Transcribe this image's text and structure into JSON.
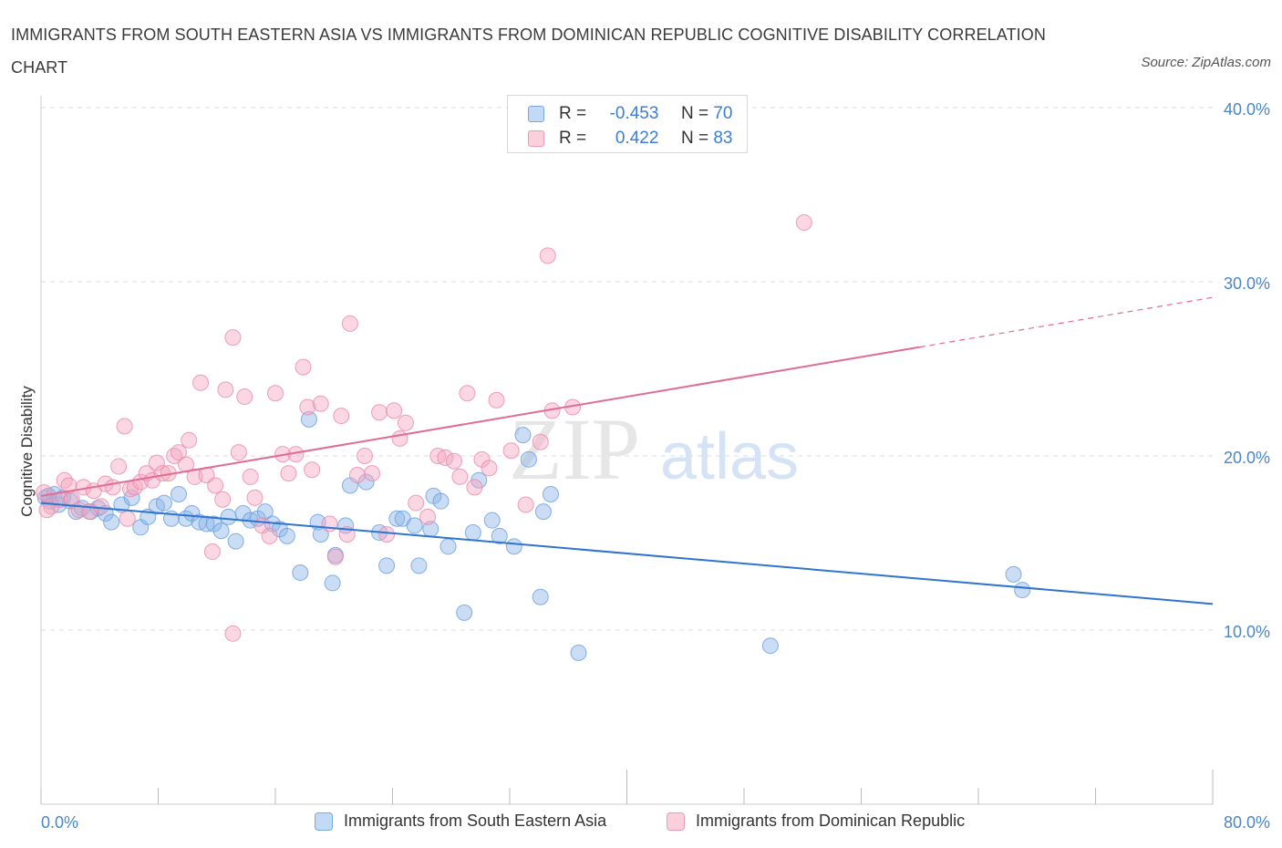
{
  "title": "IMMIGRANTS FROM SOUTH EASTERN ASIA VS IMMIGRANTS FROM DOMINICAN REPUBLIC COGNITIVE DISABILITY CORRELATION CHART",
  "source": "Source: ZipAtlas.com",
  "watermark": {
    "zip": "ZIP",
    "atlas": "atlas"
  },
  "legend_top": {
    "r_label": "R =",
    "n_label": "N =",
    "rows": [
      {
        "r": "-0.453",
        "n": "70"
      },
      {
        "r": "0.422",
        "n": "83"
      }
    ]
  },
  "chart_data": {
    "type": "scatter",
    "title": "IMMIGRANTS FROM SOUTH EASTERN ASIA VS IMMIGRANTS FROM DOMINICAN REPUBLIC COGNITIVE DISABILITY CORRELATION CHART",
    "xlabel": "",
    "ylabel": "Cognitive Disability",
    "xlim": [
      0,
      80
    ],
    "ylim": [
      0,
      40
    ],
    "x_tick_labels": [
      "0.0%",
      "80.0%"
    ],
    "y_ticks": [
      10,
      20,
      30,
      40
    ],
    "y_tick_labels": [
      "10.0%",
      "20.0%",
      "30.0%",
      "40.0%"
    ],
    "grid": true,
    "series": [
      {
        "name": "Immigrants from South Eastern Asia",
        "color": "#8ab4e8",
        "line_color": "#2f74d0",
        "r": -0.453,
        "n": 70,
        "trend": {
          "x": [
            0,
            80
          ],
          "y": [
            17.3,
            11.5
          ],
          "dashed_from": null
        },
        "points": [
          [
            0.3,
            17.6
          ],
          [
            0.6,
            17.4
          ],
          [
            0.9,
            17.8
          ],
          [
            1.2,
            17.2
          ],
          [
            1.5,
            17.6
          ],
          [
            2,
            17.4
          ],
          [
            2.4,
            16.8
          ],
          [
            2.8,
            17.0
          ],
          [
            3.4,
            16.8
          ],
          [
            3.9,
            17.0
          ],
          [
            4.4,
            16.7
          ],
          [
            4.8,
            16.2
          ],
          [
            5.5,
            17.2
          ],
          [
            6.2,
            17.6
          ],
          [
            6.8,
            15.9
          ],
          [
            7.3,
            16.5
          ],
          [
            7.9,
            17.1
          ],
          [
            8.4,
            17.3
          ],
          [
            8.9,
            16.4
          ],
          [
            9.4,
            17.8
          ],
          [
            9.9,
            16.4
          ],
          [
            10.3,
            16.7
          ],
          [
            10.8,
            16.2
          ],
          [
            11.3,
            16.1
          ],
          [
            11.8,
            16.1
          ],
          [
            12.3,
            15.7
          ],
          [
            12.8,
            16.5
          ],
          [
            13.3,
            15.1
          ],
          [
            13.8,
            16.7
          ],
          [
            14.3,
            16.3
          ],
          [
            14.8,
            16.4
          ],
          [
            15.3,
            16.8
          ],
          [
            15.8,
            16.1
          ],
          [
            16.3,
            15.8
          ],
          [
            16.8,
            15.4
          ],
          [
            17.7,
            13.3
          ],
          [
            18.3,
            22.1
          ],
          [
            18.9,
            16.2
          ],
          [
            19.1,
            15.5
          ],
          [
            19.9,
            12.7
          ],
          [
            20.1,
            14.3
          ],
          [
            20.8,
            16.0
          ],
          [
            21.1,
            18.3
          ],
          [
            22.2,
            18.5
          ],
          [
            23.1,
            15.6
          ],
          [
            23.6,
            13.7
          ],
          [
            24.3,
            16.4
          ],
          [
            24.7,
            16.4
          ],
          [
            25.5,
            16.0
          ],
          [
            25.8,
            13.7
          ],
          [
            26.6,
            15.8
          ],
          [
            26.8,
            17.7
          ],
          [
            27.3,
            17.4
          ],
          [
            27.8,
            14.8
          ],
          [
            28.9,
            11.0
          ],
          [
            29.5,
            15.6
          ],
          [
            29.9,
            18.6
          ],
          [
            30.8,
            16.3
          ],
          [
            31.3,
            15.4
          ],
          [
            32.3,
            14.8
          ],
          [
            32.9,
            21.2
          ],
          [
            33.3,
            19.8
          ],
          [
            34.1,
            11.9
          ],
          [
            34.3,
            16.8
          ],
          [
            34.8,
            17.8
          ],
          [
            36.7,
            8.7
          ],
          [
            49.8,
            9.1
          ],
          [
            66.4,
            13.2
          ],
          [
            67,
            12.3
          ],
          [
            0.5,
            17.7
          ]
        ]
      },
      {
        "name": "Immigrants from Dominican Republic",
        "color": "#f4a6be",
        "line_color": "#e06c92",
        "r": 0.422,
        "n": 83,
        "trend": {
          "x": [
            0,
            80
          ],
          "y": [
            17.7,
            29.1
          ],
          "dashed_from": 60
        },
        "points": [
          [
            0.2,
            17.9
          ],
          [
            0.7,
            17.1
          ],
          [
            1.3,
            17.5
          ],
          [
            1.6,
            18.6
          ],
          [
            2.1,
            17.5
          ],
          [
            2.6,
            16.9
          ],
          [
            2.9,
            18.2
          ],
          [
            3.3,
            16.8
          ],
          [
            3.6,
            18.0
          ],
          [
            4.1,
            17.1
          ],
          [
            4.4,
            18.4
          ],
          [
            4.9,
            18.2
          ],
          [
            5.3,
            19.4
          ],
          [
            5.7,
            21.7
          ],
          [
            6.1,
            18.1
          ],
          [
            6.4,
            18.2
          ],
          [
            6.8,
            18.5
          ],
          [
            7.2,
            19.0
          ],
          [
            7.6,
            18.6
          ],
          [
            7.9,
            19.6
          ],
          [
            8.3,
            19.0
          ],
          [
            8.7,
            19.0
          ],
          [
            9.1,
            20.0
          ],
          [
            9.4,
            20.2
          ],
          [
            9.9,
            19.5
          ],
          [
            10.1,
            20.9
          ],
          [
            10.5,
            18.8
          ],
          [
            10.9,
            24.2
          ],
          [
            11.3,
            18.9
          ],
          [
            11.7,
            14.5
          ],
          [
            11.9,
            18.3
          ],
          [
            12.4,
            17.5
          ],
          [
            12.6,
            23.8
          ],
          [
            13.1,
            26.8
          ],
          [
            13.5,
            20.2
          ],
          [
            13.9,
            23.4
          ],
          [
            14.3,
            18.8
          ],
          [
            14.6,
            17.6
          ],
          [
            15.1,
            16.0
          ],
          [
            15.6,
            15.4
          ],
          [
            16,
            23.6
          ],
          [
            16.5,
            20.1
          ],
          [
            16.9,
            19.0
          ],
          [
            17.4,
            20.1
          ],
          [
            17.9,
            25.1
          ],
          [
            18.2,
            22.8
          ],
          [
            18.5,
            19.2
          ],
          [
            19.1,
            23.0
          ],
          [
            19.7,
            16.1
          ],
          [
            20.1,
            14.2
          ],
          [
            20.5,
            22.3
          ],
          [
            20.9,
            15.5
          ],
          [
            21.1,
            27.6
          ],
          [
            21.6,
            18.9
          ],
          [
            22.1,
            20.0
          ],
          [
            22.6,
            19.0
          ],
          [
            23.1,
            22.5
          ],
          [
            23.6,
            15.5
          ],
          [
            24.1,
            22.6
          ],
          [
            24.5,
            21.0
          ],
          [
            24.9,
            21.9
          ],
          [
            25.6,
            17.3
          ],
          [
            26.4,
            16.5
          ],
          [
            27.1,
            20.0
          ],
          [
            27.6,
            19.9
          ],
          [
            28.2,
            19.7
          ],
          [
            28.6,
            18.8
          ],
          [
            29.1,
            23.6
          ],
          [
            29.6,
            18.2
          ],
          [
            30.1,
            19.8
          ],
          [
            30.6,
            19.3
          ],
          [
            31.1,
            23.2
          ],
          [
            32.1,
            20.3
          ],
          [
            33.1,
            17.2
          ],
          [
            34.6,
            31.5
          ],
          [
            34.1,
            20.8
          ],
          [
            34.9,
            22.6
          ],
          [
            36.3,
            22.8
          ],
          [
            52.1,
            33.4
          ],
          [
            0.4,
            16.9
          ],
          [
            1.9,
            18.3
          ],
          [
            13.1,
            9.8
          ],
          [
            5.9,
            16.4
          ]
        ]
      }
    ]
  },
  "legend_bottom": [
    {
      "label": "Immigrants from South Eastern Asia"
    },
    {
      "label": "Immigrants from Dominican Republic"
    }
  ]
}
